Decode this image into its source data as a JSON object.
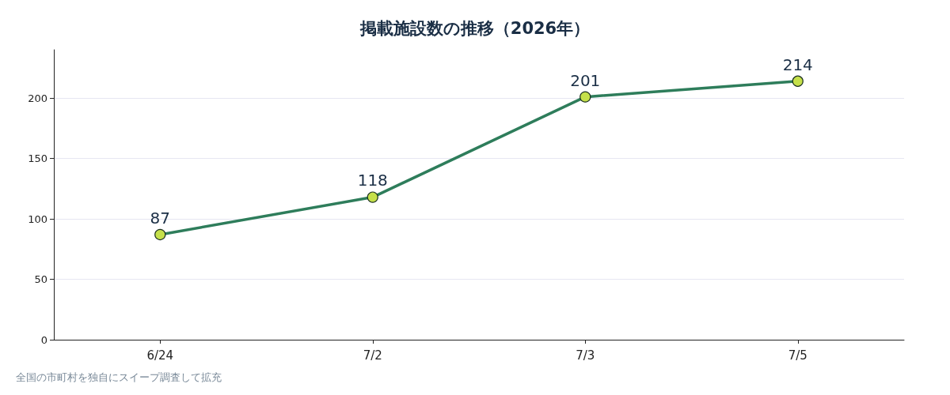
{
  "chart_data": {
    "type": "line",
    "title": "掲載施設数の推移（2026年）",
    "categories": [
      "6/24",
      "7/2",
      "7/3",
      "7/5"
    ],
    "series": [
      {
        "color": "#2e7d5b",
        "values": [
          87,
          118,
          201,
          214
        ]
      }
    ],
    "ylim": [
      0,
      240
    ],
    "yticks": [
      0,
      50,
      100,
      150,
      200
    ],
    "grid": "y",
    "marker": "circle",
    "line_style": "solid",
    "data_labels": true,
    "annotations": [
      "全国の市町村を独自にスイープ調査して拡充"
    ]
  }
}
